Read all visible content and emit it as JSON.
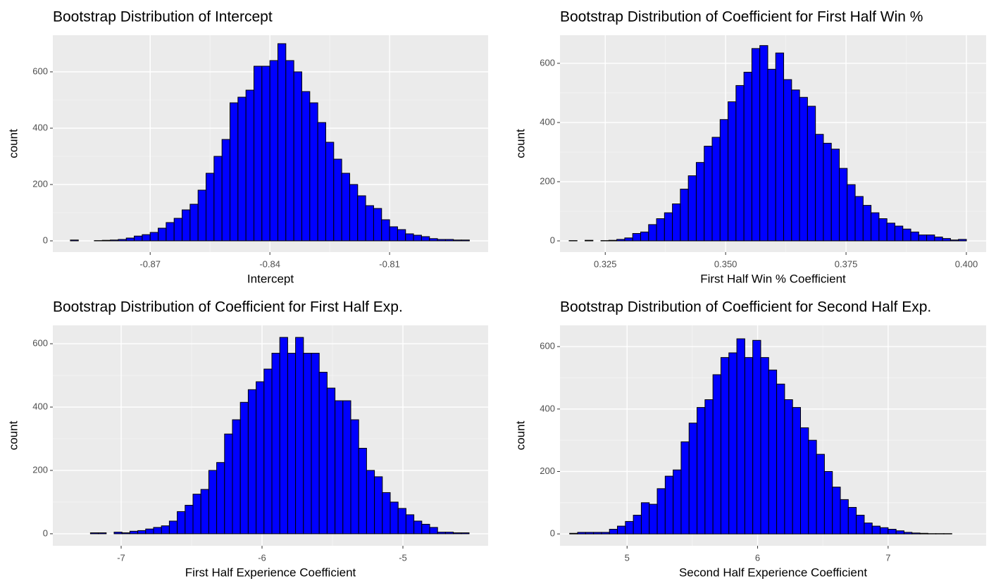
{
  "chart_data": [
    {
      "type": "histogram",
      "title": "Bootstrap Distribution of Intercept",
      "x_label": "Intercept",
      "y_label": "count",
      "bins": [
        -0.89,
        -0.888,
        -0.886,
        -0.884,
        -0.882,
        -0.88,
        -0.878,
        -0.876,
        -0.874,
        -0.872,
        -0.87,
        -0.868,
        -0.866,
        -0.864,
        -0.862,
        -0.86,
        -0.858,
        -0.856,
        -0.854,
        -0.852,
        -0.85,
        -0.848,
        -0.846,
        -0.844,
        -0.842,
        -0.84,
        -0.838,
        -0.836,
        -0.834,
        -0.832,
        -0.83,
        -0.828,
        -0.826,
        -0.824,
        -0.822,
        -0.82,
        -0.818,
        -0.816,
        -0.814,
        -0.812,
        -0.81,
        -0.808,
        -0.806,
        -0.804,
        -0.802,
        -0.8,
        -0.798,
        -0.796,
        -0.794,
        -0.792,
        -0.79
      ],
      "counts": [
        3,
        0,
        0,
        1,
        2,
        3,
        5,
        10,
        17,
        22,
        30,
        45,
        65,
        80,
        110,
        130,
        180,
        240,
        300,
        360,
        490,
        510,
        535,
        620,
        620,
        640,
        700,
        640,
        600,
        530,
        490,
        420,
        350,
        290,
        240,
        200,
        160,
        125,
        115,
        75,
        50,
        40,
        25,
        20,
        15,
        8,
        5,
        5,
        3,
        3
      ],
      "color": "#0000ff",
      "edge_color": "#000000",
      "grid": true,
      "xlim": [
        -0.8944,
        -0.7853
      ],
      "ylim": [
        -40,
        730
      ],
      "xticks": [
        -0.87,
        -0.84,
        -0.81
      ],
      "yticks": [
        0,
        200,
        400,
        600
      ]
    },
    {
      "type": "histogram",
      "title": "Bootstrap Distribution of Coefficient for First Half Win %",
      "x_label": "First Half Win % Coefficient",
      "y_label": "count",
      "bins": [
        0.3175,
        0.31915,
        0.3208,
        0.32245,
        0.3241,
        0.32575,
        0.3274,
        0.32905,
        0.3307,
        0.33235,
        0.334,
        0.33565,
        0.3373,
        0.33895,
        0.3406,
        0.34225,
        0.3439,
        0.34555,
        0.3472,
        0.34885,
        0.3505,
        0.35215,
        0.3538,
        0.35545,
        0.3571,
        0.35875,
        0.3604,
        0.36205,
        0.3637,
        0.36535,
        0.367,
        0.36865,
        0.3703,
        0.37195,
        0.3736,
        0.37525,
        0.3769,
        0.37855,
        0.3802,
        0.38185,
        0.3835,
        0.38515,
        0.3868,
        0.38845,
        0.3901,
        0.39175,
        0.3934,
        0.39505,
        0.3967,
        0.39835,
        0.4
      ],
      "counts": [
        1,
        0,
        2,
        0,
        1,
        2,
        5,
        10,
        25,
        30,
        55,
        75,
        95,
        125,
        175,
        220,
        265,
        320,
        350,
        410,
        470,
        525,
        570,
        650,
        660,
        580,
        635,
        545,
        510,
        485,
        455,
        360,
        330,
        310,
        245,
        190,
        150,
        120,
        95,
        75,
        60,
        50,
        40,
        30,
        20,
        20,
        13,
        8,
        3,
        5
      ],
      "color": "#0000ff",
      "edge_color": "#000000",
      "grid": true,
      "xlim": [
        0.3156,
        0.4041
      ],
      "ylim": [
        -38,
        695
      ],
      "xticks": [
        0.325,
        {
          "value": 0.35,
          "label": "0.350"
        },
        0.375,
        {
          "value": 0.4,
          "label": "0.400"
        }
      ],
      "yticks": [
        0,
        200,
        400,
        600
      ]
    },
    {
      "type": "histogram",
      "title": "Bootstrap Distribution of Coefficient for First Half Exp.",
      "x_label": "First Half Experience Coefficient",
      "y_label": "count",
      "bins": [
        -7.33,
        -7.274,
        -7.218,
        -7.162,
        -7.106,
        -7.05,
        -6.994,
        -6.938,
        -6.882,
        -6.826,
        -6.77,
        -6.714,
        -6.658,
        -6.602,
        -6.546,
        -6.49,
        -6.434,
        -6.378,
        -6.322,
        -6.266,
        -6.21,
        -6.154,
        -6.098,
        -6.042,
        -5.986,
        -5.93,
        -5.874,
        -5.818,
        -5.762,
        -5.706,
        -5.65,
        -5.594,
        -5.538,
        -5.482,
        -5.426,
        -5.37,
        -5.314,
        -5.258,
        -5.202,
        -5.146,
        -5.09,
        -5.034,
        -4.978,
        -4.922,
        -4.866,
        -4.81,
        -4.754,
        -4.698,
        -4.642,
        -4.586,
        -4.53
      ],
      "counts": [
        0,
        0,
        3,
        3,
        0,
        5,
        3,
        8,
        10,
        15,
        20,
        25,
        40,
        70,
        90,
        125,
        140,
        200,
        225,
        315,
        360,
        415,
        455,
        480,
        520,
        570,
        620,
        570,
        620,
        570,
        570,
        510,
        460,
        420,
        420,
        360,
        270,
        200,
        180,
        130,
        100,
        80,
        60,
        40,
        30,
        20,
        5,
        5,
        3,
        3
      ],
      "color": "#0000ff",
      "edge_color": "#000000",
      "grid": true,
      "xlim": [
        -7.485,
        -4.395
      ],
      "ylim": [
        -38,
        658
      ],
      "xticks": [
        -7,
        -6,
        -5
      ],
      "yticks": [
        0,
        200,
        400,
        600
      ]
    },
    {
      "type": "histogram",
      "title": "Bootstrap Distribution of Coefficient for Second Half Exp.",
      "x_label": "Second Half Experience Coefficient",
      "y_label": "count",
      "bins": [
        4.56,
        4.621,
        4.682,
        4.743,
        4.804,
        4.865,
        4.926,
        4.987,
        5.048,
        5.109,
        5.17,
        5.231,
        5.292,
        5.353,
        5.414,
        5.475,
        5.536,
        5.597,
        5.658,
        5.719,
        5.78,
        5.841,
        5.902,
        5.963,
        6.024,
        6.085,
        6.146,
        6.207,
        6.268,
        6.329,
        6.39,
        6.451,
        6.512,
        6.573,
        6.634,
        6.695,
        6.756,
        6.817,
        6.878,
        6.939,
        7.0,
        7.061,
        7.122,
        7.183,
        7.244,
        7.305,
        7.366,
        7.427,
        7.488,
        7.549,
        7.61
      ],
      "counts": [
        2,
        5,
        5,
        5,
        5,
        15,
        25,
        40,
        60,
        100,
        95,
        145,
        185,
        205,
        295,
        355,
        405,
        430,
        510,
        565,
        580,
        625,
        565,
        620,
        565,
        525,
        480,
        430,
        405,
        340,
        300,
        255,
        200,
        150,
        110,
        85,
        60,
        35,
        25,
        20,
        15,
        10,
        5,
        3,
        2,
        1,
        1,
        1,
        0,
        0
      ],
      "color": "#0000ff",
      "edge_color": "#000000",
      "grid": true,
      "xlim": [
        4.486,
        7.751
      ],
      "ylim": [
        -38,
        668
      ],
      "xticks": [
        5,
        6,
        7
      ],
      "yticks": [
        0,
        200,
        400,
        600
      ]
    }
  ]
}
